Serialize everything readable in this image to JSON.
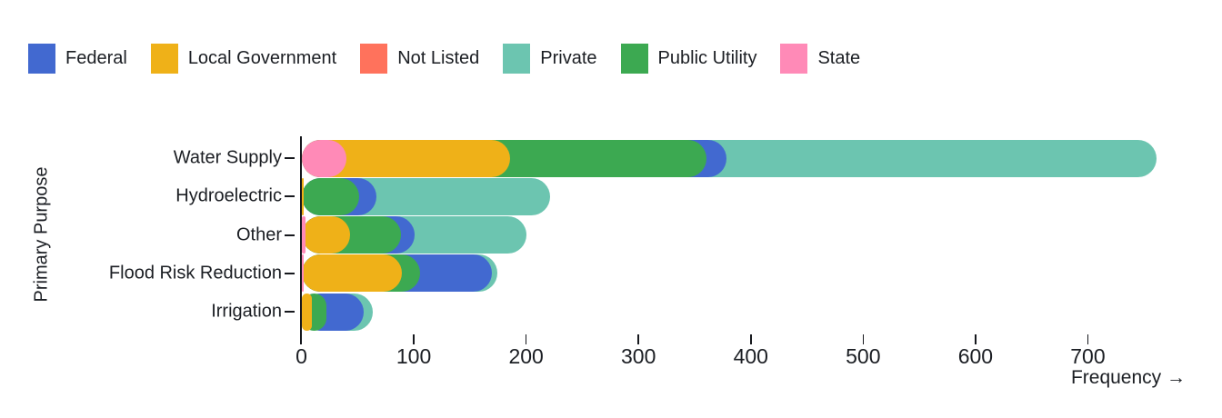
{
  "legend": {
    "items": [
      {
        "label": "Federal",
        "color": "#4269d0"
      },
      {
        "label": "Local Government",
        "color": "#efb118"
      },
      {
        "label": "Not Listed",
        "color": "#ff725c"
      },
      {
        "label": "Private",
        "color": "#6cc5b0"
      },
      {
        "label": "Public Utility",
        "color": "#3ca951"
      },
      {
        "label": "State",
        "color": "#ff8ab7"
      }
    ]
  },
  "chart_data": {
    "type": "bar",
    "orientation": "horizontal",
    "stacked": true,
    "title": "",
    "xlabel": "Frequency →",
    "ylabel": "Primary Purpose",
    "xlim": [
      0,
      780
    ],
    "xticks": [
      0,
      100,
      200,
      300,
      400,
      500,
      600,
      700
    ],
    "grid": false,
    "legend_position": "top-left",
    "categories": [
      "Water Supply",
      "Hydroelectric",
      "Other",
      "Flood Risk Reduction",
      "Irrigation"
    ],
    "series": [
      {
        "name": "Federal",
        "color": "#4269d0",
        "values": [
          18,
          15,
          12,
          64,
          33
        ]
      },
      {
        "name": "Local Government",
        "color": "#efb118",
        "values": [
          145,
          2,
          40,
          87,
          9
        ]
      },
      {
        "name": "Not Listed",
        "color": "#ff725c",
        "values": [
          0,
          0,
          0,
          0,
          0
        ]
      },
      {
        "name": "Private",
        "color": "#6cc5b0",
        "values": [
          383,
          155,
          100,
          5,
          8
        ]
      },
      {
        "name": "Public Utility",
        "color": "#3ca951",
        "values": [
          175,
          49,
          45,
          16,
          13
        ]
      },
      {
        "name": "State",
        "color": "#ff8ab7",
        "values": [
          40,
          0,
          3,
          2,
          0
        ]
      }
    ],
    "stack_order": [
      "State",
      "Local Government",
      "Public Utility",
      "Federal",
      "Private",
      "Not Listed"
    ]
  },
  "colors": {
    "text": "#1b1e23",
    "axis": "#16181d",
    "background": "#ffffff"
  }
}
